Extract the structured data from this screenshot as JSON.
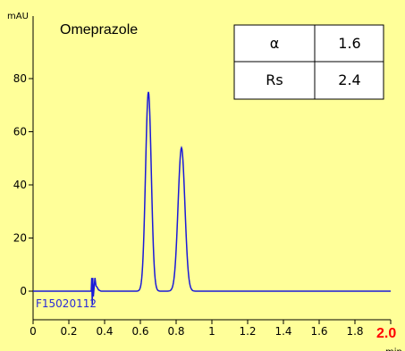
{
  "chart_data": {
    "type": "line",
    "title": "Omeprazole",
    "sample_id": "F15020112",
    "y_unit": "mAU",
    "x_unit": "min",
    "xlim": [
      0,
      2.0
    ],
    "ylim": [
      -10,
      100
    ],
    "x_ticks": [
      "0",
      "0.2",
      "0.4",
      "0.6",
      "0.8",
      "1",
      "1.2",
      "1.4",
      "1.6",
      "1.8"
    ],
    "x_tick_values": [
      0,
      0.2,
      0.4,
      0.6,
      0.8,
      1.0,
      1.2,
      1.4,
      1.6,
      1.8
    ],
    "y_ticks": [
      "0",
      "20",
      "40",
      "60",
      "80"
    ],
    "y_tick_values": [
      0,
      20,
      40,
      60,
      80
    ],
    "highlight_tick": "2.0",
    "series": [
      {
        "color": "#1a1ad8",
        "baseline": 0,
        "peaks": [
          {
            "retention_time": 0.645,
            "height": 75,
            "width": 0.016
          },
          {
            "retention_time": 0.83,
            "height": 54,
            "width": 0.019
          }
        ],
        "disturbance": [
          [
            0.325,
            0
          ],
          [
            0.328,
            5
          ],
          [
            0.331,
            -5
          ],
          [
            0.334,
            5
          ],
          [
            0.337,
            -2
          ],
          [
            0.341,
            1
          ],
          [
            0.346,
            5
          ],
          [
            0.352,
            2
          ],
          [
            0.358,
            1.5
          ],
          [
            0.366,
            0.5
          ],
          [
            0.38,
            0
          ]
        ]
      }
    ],
    "grid": false
  },
  "table": {
    "rows": [
      {
        "label": "α",
        "value": "1.6"
      },
      {
        "label": "Rs",
        "value": "2.4"
      }
    ]
  }
}
